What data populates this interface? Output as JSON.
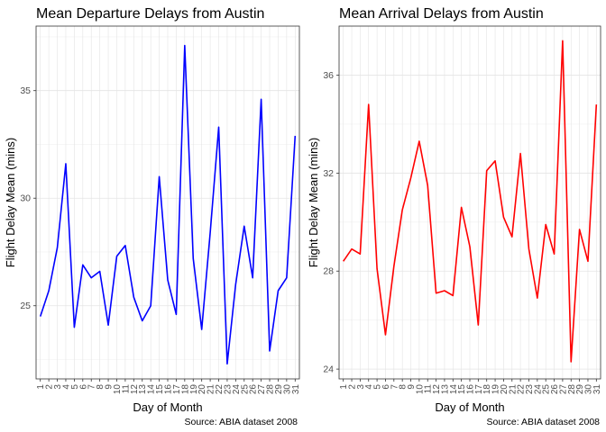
{
  "chart_data": [
    {
      "type": "line",
      "title": "Mean Departure Delays from Austin",
      "xlabel": "Day of Month",
      "ylabel": "Flight Delay Mean (mins)",
      "caption": "Source: ABIA dataset 2008",
      "ylim": [
        21.6,
        38.0
      ],
      "yticks": [
        25,
        30,
        35
      ],
      "line_color": "#0000ff",
      "grid": true,
      "series": [
        {
          "x": [
            1,
            2,
            3,
            4,
            5,
            6,
            7,
            8,
            9,
            10,
            11,
            12,
            13,
            14,
            15,
            16,
            17,
            18,
            19,
            20,
            21,
            22,
            23,
            24,
            25,
            26,
            27,
            28,
            29,
            30,
            31
          ],
          "values": [
            24.5,
            25.7,
            27.7,
            31.6,
            24.0,
            26.9,
            26.3,
            26.6,
            24.1,
            27.3,
            27.8,
            25.4,
            24.3,
            25.0,
            31.0,
            26.2,
            24.6,
            37.1,
            27.2,
            23.9,
            28.4,
            33.3,
            22.3,
            26.0,
            28.7,
            26.3,
            34.6,
            22.9,
            25.7,
            26.3,
            32.9
          ]
        }
      ]
    },
    {
      "type": "line",
      "title": "Mean Arrival Delays from Austin",
      "xlabel": "Day of Month",
      "ylabel": "Flight Delay Mean (mins)",
      "caption": "Source: ABIA dataset 2008",
      "ylim": [
        23.6,
        38.0
      ],
      "yticks": [
        24,
        28,
        32,
        36
      ],
      "line_color": "#ff0000",
      "grid": true,
      "series": [
        {
          "x": [
            1,
            2,
            3,
            4,
            5,
            6,
            7,
            8,
            9,
            10,
            11,
            12,
            13,
            14,
            15,
            16,
            17,
            18,
            19,
            20,
            21,
            22,
            23,
            24,
            25,
            26,
            27,
            28,
            29,
            30,
            31
          ],
          "values": [
            28.4,
            28.9,
            28.7,
            34.8,
            28.1,
            25.4,
            28.2,
            30.5,
            31.8,
            33.3,
            31.5,
            27.1,
            27.2,
            27.0,
            30.6,
            29.0,
            25.8,
            32.1,
            32.5,
            30.2,
            29.4,
            32.8,
            28.9,
            26.9,
            29.9,
            28.7,
            37.4,
            24.3,
            29.7,
            28.4,
            34.8
          ]
        }
      ]
    }
  ]
}
